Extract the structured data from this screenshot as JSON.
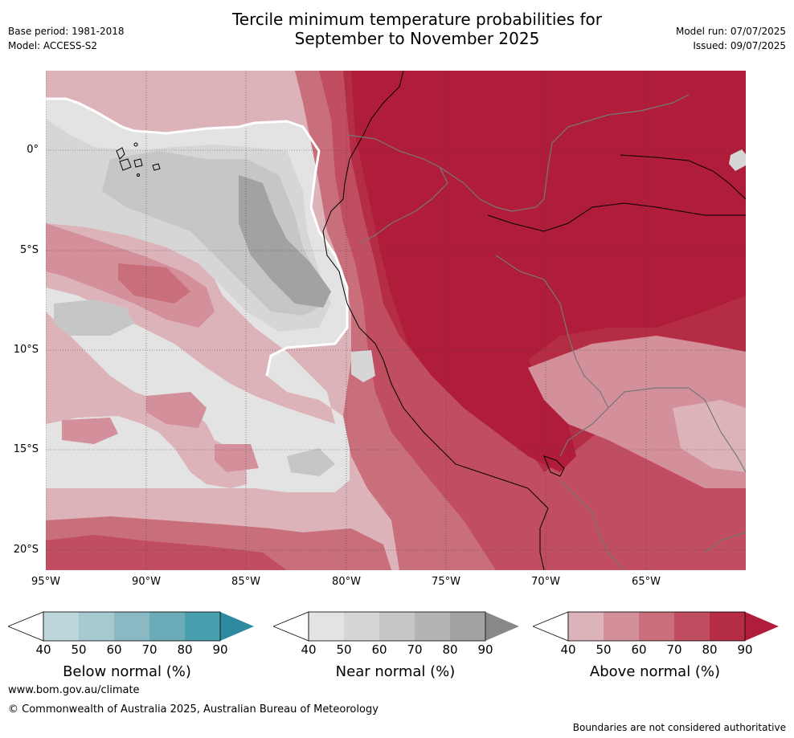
{
  "header": {
    "base_period": "Base period: 1981-2018",
    "model": "Model: ACCESS-S2",
    "title_line1": "Tercile minimum temperature probabilities for",
    "title_line2": "September to November 2025",
    "model_run": "Model run: 07/07/2025",
    "issued": "Issued: 09/07/2025"
  },
  "map": {
    "lat_labels": [
      "0°",
      "5°S",
      "10°S",
      "15°S",
      "20°S"
    ],
    "lon_labels": [
      "95°W",
      "90°W",
      "85°W",
      "80°W",
      "75°W",
      "70°W",
      "65°W"
    ],
    "colors": {
      "above_40": "#ddb3ba",
      "above_50": "#d4909a",
      "above_60": "#c96f7c",
      "above_70": "#c04e60",
      "above_80": "#b52d45",
      "above_90": "#b01d3a",
      "near_40": "#e3e3e3",
      "near_50": "#d6d6d6",
      "near_60": "#c6c6c6",
      "near_70": "#b4b4b4",
      "near_80": "#a2a2a2",
      "near_90": "#888888",
      "below_40": "#bcd6dc",
      "below_50": "#a6c8cf",
      "below_60": "#8ab9c3",
      "below_70": "#6babb7",
      "below_80": "#4a9fae",
      "below_90": "#2e8b9f"
    }
  },
  "colorbars": [
    {
      "title": "Below normal (%)",
      "ticks": [
        "40",
        "50",
        "60",
        "70",
        "80",
        "90"
      ]
    },
    {
      "title": "Near normal (%)",
      "ticks": [
        "40",
        "50",
        "60",
        "70",
        "80",
        "90"
      ]
    },
    {
      "title": "Above normal (%)",
      "ticks": [
        "40",
        "50",
        "60",
        "70",
        "80",
        "90"
      ]
    }
  ],
  "footer": {
    "website": "www.bom.gov.au/climate",
    "copyright": "© Commonwealth of Australia 2025, Australian Bureau of Meteorology",
    "disclaimer": "Boundaries are not considered authoritative"
  }
}
